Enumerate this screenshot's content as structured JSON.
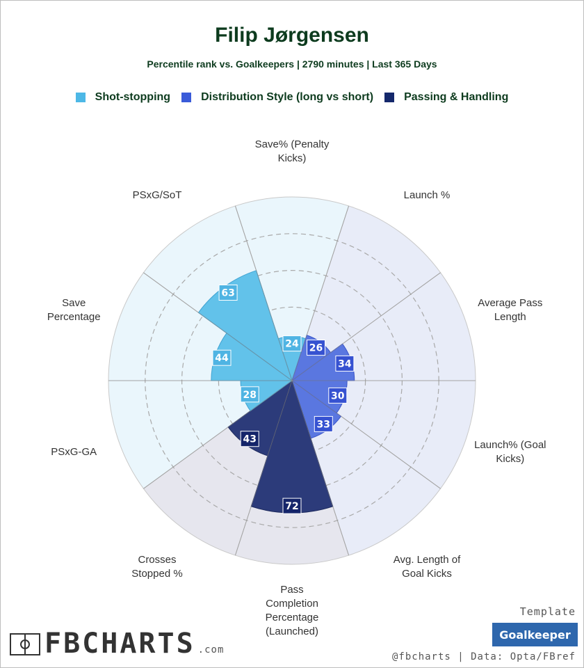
{
  "header": {
    "title": "Filip Jørgensen",
    "subtitle": "Percentile rank vs. Goalkeepers | 2790 minutes | Last 365 Days"
  },
  "legend": [
    {
      "label": "Shot-stopping",
      "color": "#4db8e6"
    },
    {
      "label": "Distribution Style (long vs short)",
      "color": "#3a5bd9"
    },
    {
      "label": "Passing & Handling",
      "color": "#14286b"
    }
  ],
  "chart_data": {
    "type": "polar-bar",
    "range": [
      0,
      100
    ],
    "categories": [
      {
        "label": "Save% (Penalty Kicks)",
        "lines": [
          "Save% (Penalty",
          "Kicks)"
        ],
        "value": 24,
        "group": 0
      },
      {
        "label": "Launch %",
        "lines": [
          "Launch %"
        ],
        "value": 26,
        "group": 1
      },
      {
        "label": "Average Pass Length",
        "lines": [
          "Average Pass",
          "Length"
        ],
        "value": 34,
        "group": 1
      },
      {
        "label": "Launch% (Goal Kicks)",
        "lines": [
          "Launch% (Goal",
          "Kicks)"
        ],
        "value": 30,
        "group": 1
      },
      {
        "label": "Avg. Length of Goal Kicks",
        "lines": [
          "Avg. Length of",
          "Goal Kicks"
        ],
        "value": 33,
        "group": 1
      },
      {
        "label": "Pass Completion Percentage (Launched)",
        "lines": [
          "Pass",
          "Completion",
          "Percentage",
          "(Launched)"
        ],
        "value": 72,
        "group": 2
      },
      {
        "label": "Crosses Stopped %",
        "lines": [
          "Crosses",
          "Stopped %"
        ],
        "value": 43,
        "group": 2
      },
      {
        "label": "PSxG-GA",
        "lines": [
          "PSxG-GA"
        ],
        "value": 28,
        "group": 0
      },
      {
        "label": "Save Percentage",
        "lines": [
          "Save",
          "Percentage"
        ],
        "value": 44,
        "group": 0
      },
      {
        "label": "PSxG/SoT",
        "lines": [
          "PSxG/SoT"
        ],
        "value": 63,
        "group": 0
      }
    ],
    "group_colors": {
      "bar": [
        "#62c2ea",
        "#5a77e0",
        "#2c3b7a"
      ],
      "bar_stroke": [
        "#3fa3d2",
        "#3a55c9",
        "#1d2a5e"
      ],
      "label_box": [
        "#4fb4e3",
        "#3652d1",
        "#14246a"
      ],
      "background": [
        "#eaf6fc",
        "#e8ecf8",
        "#e6e6ee"
      ]
    },
    "grid": true
  },
  "template": {
    "label": "Template",
    "value": "Goalkeeper"
  },
  "credits": "@fbcharts | Data: Opta/FBref",
  "brand": {
    "name": "FBCHARTS",
    "suffix": ".com"
  }
}
